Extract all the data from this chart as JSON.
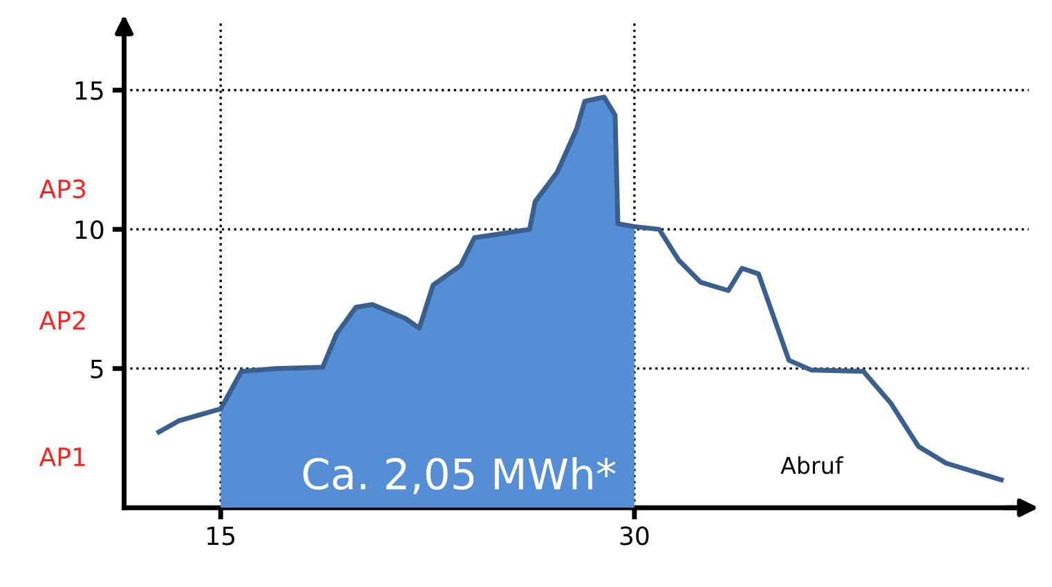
{
  "chart_data": {
    "type": "line",
    "xlim": [
      11.5,
      44.3
    ],
    "ylim": [
      0,
      17.5
    ],
    "xticks": [
      15,
      30
    ],
    "yticks": [
      5,
      10,
      15
    ],
    "grid": true,
    "annotations": [
      "AP1",
      "AP2",
      "AP3",
      "Ca. 2,05 MWh*",
      "Abruf"
    ],
    "series": [
      {
        "type": "area",
        "color": "#558ed5",
        "x": [
          15,
          15.75,
          17.0,
          18.7,
          19.2,
          19.9,
          20.5,
          21.7,
          22.2,
          22.7,
          23.7,
          24.2,
          26.2,
          26.4,
          27.2,
          27.9,
          28.2,
          28.9,
          29.3,
          29.4,
          30
        ],
        "values": [
          3.55,
          4.9,
          5.0,
          5.05,
          6.24,
          7.2,
          7.3,
          6.8,
          6.45,
          8.0,
          8.7,
          9.7,
          10.0,
          11.0,
          12.05,
          13.6,
          14.6,
          14.75,
          14.1,
          10.2,
          10.1
        ]
      },
      {
        "type": "line",
        "color": "#3a5f8f",
        "x": [
          12.76,
          13.5,
          15,
          15.75,
          17.0,
          18.7,
          19.2,
          19.9,
          20.5,
          21.7,
          22.2,
          22.7,
          23.7,
          24.2,
          26.2,
          26.4,
          27.2,
          27.9,
          28.2,
          28.9,
          29.3,
          29.4,
          30,
          30.9,
          31.6,
          32.4,
          33.4,
          33.9,
          34.5,
          35.6,
          36.4,
          38.3,
          39.3,
          40.3,
          41.3,
          43.3
        ],
        "values": [
          2.72,
          3.13,
          3.55,
          4.9,
          5.0,
          5.05,
          6.24,
          7.2,
          7.3,
          6.8,
          6.45,
          8.0,
          8.7,
          9.7,
          10.0,
          11.0,
          12.05,
          13.6,
          14.6,
          14.75,
          14.1,
          10.2,
          10.1,
          10.0,
          8.9,
          8.1,
          7.8,
          8.6,
          8.4,
          5.3,
          4.95,
          4.9,
          3.75,
          2.2,
          1.6,
          1.0
        ]
      }
    ]
  }
}
